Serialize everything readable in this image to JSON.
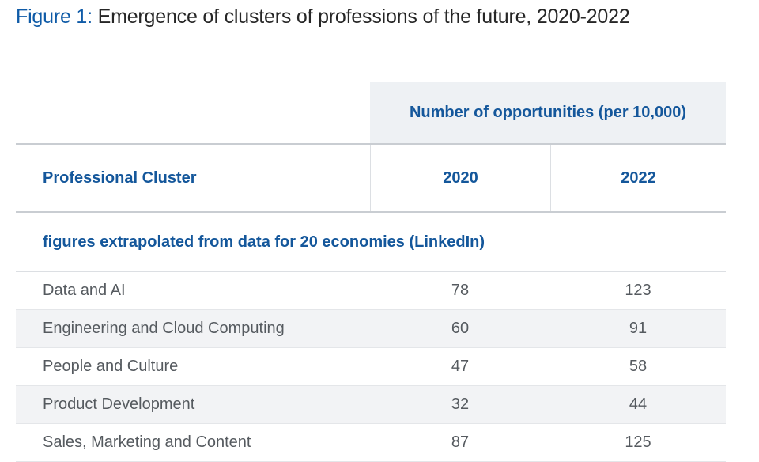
{
  "title": {
    "label": "Figure 1:",
    "text": "Emergence of clusters of professions of the future, 2020-2022"
  },
  "table": {
    "group_header": "Number of opportunities (per 10,000)",
    "columns": {
      "cluster": "Professional Cluster",
      "year1": "2020",
      "year2": "2022"
    },
    "note": "figures extrapolated from data for 20 economies (LinkedIn)",
    "rows": [
      {
        "cluster": "Data and AI",
        "v2020": "78",
        "v2022": "123"
      },
      {
        "cluster": "Engineering and Cloud Computing",
        "v2020": "60",
        "v2022": "91"
      },
      {
        "cluster": "People and Culture",
        "v2020": "47",
        "v2022": "58"
      },
      {
        "cluster": "Product Development",
        "v2020": "32",
        "v2022": "44"
      },
      {
        "cluster": "Sales, Marketing and Content",
        "v2020": "87",
        "v2022": "125"
      }
    ]
  },
  "colors": {
    "accent_blue": "#14579b",
    "figure_label_blue": "#0f5ba7",
    "header_bg": "#eef1f4",
    "row_shade": "#f2f3f5"
  }
}
